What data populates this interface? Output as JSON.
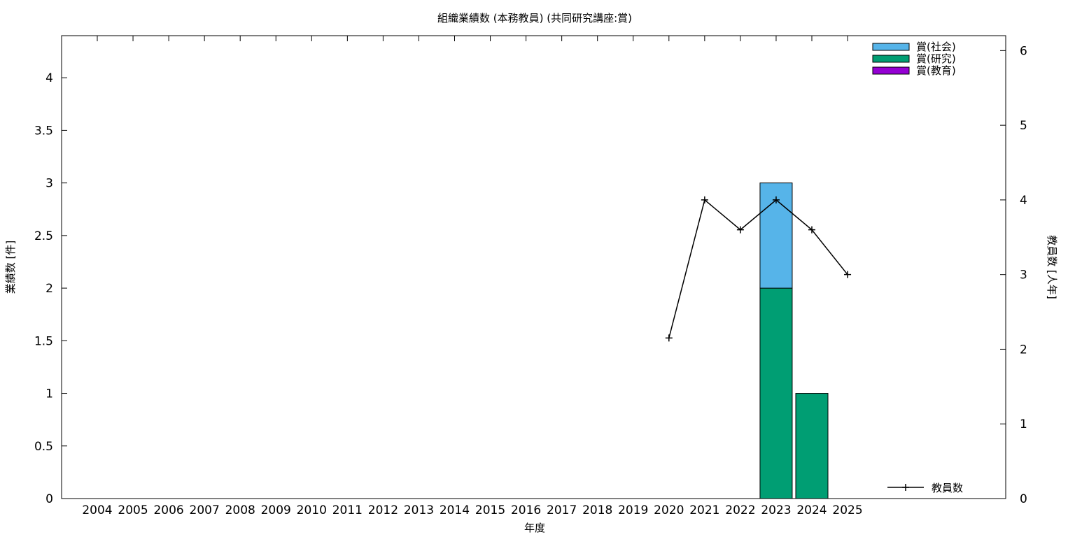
{
  "chart_data": {
    "type": "bar",
    "title": "組織業績数 (本務教員) (共同研究講座:賞)",
    "xlabel": "年度",
    "ylabel": "業績数 [件]",
    "y2label": "教員数 [人年]",
    "categories": [
      "2004",
      "2005",
      "2006",
      "2007",
      "2008",
      "2009",
      "2010",
      "2011",
      "2012",
      "2013",
      "2014",
      "2015",
      "2016",
      "2017",
      "2018",
      "2019",
      "2020",
      "2021",
      "2022",
      "2023",
      "2024",
      "2025"
    ],
    "ylim": [
      0,
      4.4
    ],
    "yticks": [
      0,
      0.5,
      1,
      1.5,
      2,
      2.5,
      3,
      3.5,
      4
    ],
    "y2lim": [
      0,
      6.2
    ],
    "y2ticks": [
      0,
      1,
      2,
      3,
      4,
      5,
      6
    ],
    "stacked": true,
    "series": [
      {
        "name": "賞(教育)",
        "color": "#9400d3",
        "values": [
          0,
          0,
          0,
          0,
          0,
          0,
          0,
          0,
          0,
          0,
          0,
          0,
          0,
          0,
          0,
          0,
          0,
          0,
          0,
          0,
          0,
          0
        ]
      },
      {
        "name": "賞(研究)",
        "color": "#009e73",
        "values": [
          0,
          0,
          0,
          0,
          0,
          0,
          0,
          0,
          0,
          0,
          0,
          0,
          0,
          0,
          0,
          0,
          0,
          0,
          0,
          2,
          1,
          0
        ]
      },
      {
        "name": "賞(社会)",
        "color": "#56b4e9",
        "values": [
          0,
          0,
          0,
          0,
          0,
          0,
          0,
          0,
          0,
          0,
          0,
          0,
          0,
          0,
          0,
          0,
          0,
          0,
          0,
          1,
          0,
          0
        ]
      }
    ],
    "legend_order": [
      "賞(社会)",
      "賞(研究)",
      "賞(教育)"
    ],
    "legend_position": "top-right",
    "line_series": {
      "name": "教員数",
      "axis": "y2",
      "color": "#000000",
      "x": [
        "2020",
        "2021",
        "2022",
        "2023",
        "2024",
        "2025"
      ],
      "values": [
        2.15,
        4.0,
        3.6,
        4.0,
        3.6,
        3.0
      ],
      "legend_position": "bottom-right"
    },
    "grid": false
  }
}
